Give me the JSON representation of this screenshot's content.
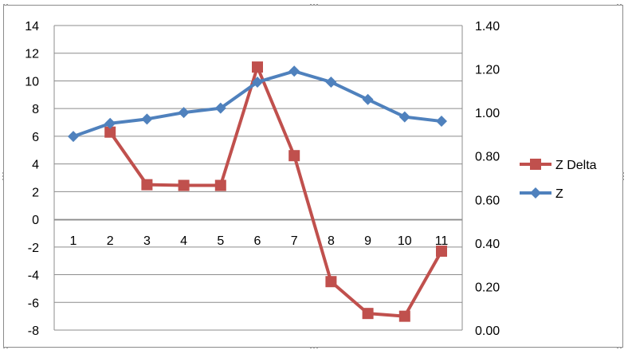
{
  "chart_data": {
    "type": "line",
    "categories": [
      "1",
      "2",
      "3",
      "4",
      "5",
      "6",
      "7",
      "8",
      "9",
      "10",
      "11"
    ],
    "series": [
      {
        "name": "Z Delta",
        "axis": "left",
        "color": "#c0504d",
        "marker": "square",
        "values": [
          null,
          6.3,
          2.5,
          2.45,
          2.45,
          11.0,
          4.6,
          -4.5,
          -6.8,
          -7.0,
          -2.3
        ]
      },
      {
        "name": "Z",
        "axis": "right",
        "color": "#4f81bd",
        "marker": "diamond",
        "values": [
          0.89,
          0.95,
          0.97,
          1.0,
          1.02,
          1.14,
          1.19,
          1.14,
          1.06,
          0.98,
          0.96
        ]
      }
    ],
    "y_left": {
      "ylim": [
        -8,
        14
      ],
      "ticks": [
        "14",
        "12",
        "10",
        "8",
        "6",
        "4",
        "2",
        "0",
        "-2",
        "-4",
        "-6",
        "-8"
      ]
    },
    "y_right": {
      "ylim": [
        0,
        1.4
      ],
      "ticks": [
        "1.40",
        "1.20",
        "1.00",
        "0.80",
        "0.60",
        "0.40",
        "0.20",
        "0.00"
      ]
    },
    "grid": true,
    "legend_position": "right",
    "title": "",
    "xlabel": "",
    "ylabel": ""
  }
}
